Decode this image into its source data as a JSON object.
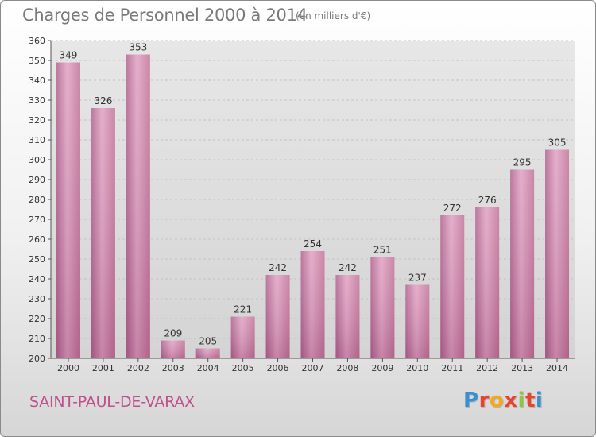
{
  "header": {
    "title": "Charges de Personnel 2000 à 2014",
    "subtitle": "(en milliers d'€)"
  },
  "footer": {
    "commune": "SAINT-PAUL-DE-VARAX",
    "logo_text": "Proxiti",
    "logo_colors": [
      "#3a8fd0",
      "#e8442b",
      "#f4a81d",
      "#e8442b",
      "#8cc63f",
      "#e8442b",
      "#3a8fd0"
    ]
  },
  "chart_data": {
    "type": "bar",
    "categories": [
      "2000",
      "2001",
      "2002",
      "2003",
      "2004",
      "2005",
      "2006",
      "2007",
      "2008",
      "2009",
      "2010",
      "2011",
      "2012",
      "2013",
      "2014"
    ],
    "values": [
      349,
      326,
      353,
      209,
      205,
      221,
      242,
      254,
      242,
      251,
      237,
      272,
      276,
      295,
      305
    ],
    "ylim": [
      200,
      360
    ],
    "yticks": [
      200,
      210,
      220,
      230,
      240,
      250,
      260,
      270,
      280,
      290,
      300,
      310,
      320,
      330,
      340,
      350,
      360
    ],
    "grid": true,
    "bar_color": "#c8729f",
    "bar_color_light": "#e6a9c9"
  }
}
